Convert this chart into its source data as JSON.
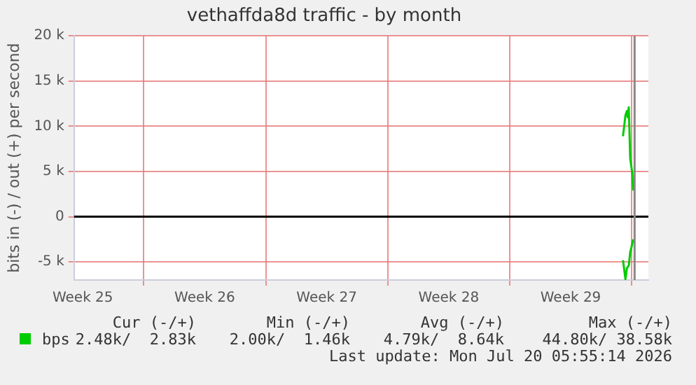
{
  "chart_data": {
    "type": "line",
    "title": "vethaffda8d traffic - by month",
    "ylabel": "bits in (-) / out (+) per second",
    "x": [
      "2026-07-19T12:00",
      "2026-07-19T15:24",
      "2026-07-19T17:24",
      "2026-07-19T18:36",
      "2026-07-19T20:00",
      "2026-07-19T22:00",
      "2026-07-20T00:50",
      "2026-07-20T02:00"
    ],
    "series": [
      {
        "name": "bps",
        "color": "#00cc00",
        "values": [
          8900,
          11200,
          11700,
          11000,
          12100,
          6400,
          4800,
          2900
        ]
      },
      {
        "color": "#00cc00",
        "x": [
          "2026-07-19T12:00",
          "2026-07-19T15:24",
          "2026-07-19T17:24",
          "2026-07-19T20:00",
          "2026-07-19T22:00",
          "2026-07-20T00:00",
          "2026-07-20T02:00"
        ],
        "values": [
          -4800,
          -6900,
          -5700,
          -5400,
          -3900,
          -3300,
          -2500
        ]
      }
    ],
    "xlim": [
      "2026-06-18T00:00",
      "2026-07-20T23:00"
    ],
    "xticks": [
      {
        "value": "2026-06-18T12:00",
        "label": "Week 25"
      },
      {
        "value": "2026-06-22",
        "label": null
      },
      {
        "value": "2026-06-25T12:00",
        "label": "Week 26"
      },
      {
        "value": "2026-06-29",
        "label": null
      },
      {
        "value": "2026-07-02T12:00",
        "label": "Week 27"
      },
      {
        "value": "2026-07-06",
        "label": null
      },
      {
        "value": "2026-07-09T12:00",
        "label": "Week 28"
      },
      {
        "value": "2026-07-13",
        "label": null
      },
      {
        "value": "2026-07-16T12:00",
        "label": "Week 29"
      },
      {
        "value": "2026-07-20",
        "label": null
      }
    ],
    "ylim": [
      -7000,
      20000
    ],
    "yticks": [
      {
        "value": -5000,
        "label": "-5 k"
      },
      0,
      {
        "value": 5000,
        "label": "5 k"
      },
      {
        "value": 10000,
        "label": "10 k"
      },
      {
        "value": 15000,
        "label": "15 k"
      },
      {
        "value": 20000,
        "label": "20 k"
      }
    ],
    "grid": true,
    "legend": "bottom left",
    "marker": "none",
    "line_style": "solid",
    "ref_lines": [
      {
        "axis": "y",
        "value": 0,
        "color": "#000000"
      },
      {
        "axis": "x",
        "value": "2026-07-20T04:00",
        "color": "#888888"
      }
    ],
    "annotations": [
      "Cur (-/+)",
      "Min (-/+)",
      "Avg (-/+)",
      "Max (-/+)",
      "2.48k/  2.83k",
      "2.00k/  1.46k",
      "4.79k/  8.64k",
      "44.80k/ 38.58k",
      "Last update: Mon Jul 20 05:55:14 2026"
    ]
  }
}
